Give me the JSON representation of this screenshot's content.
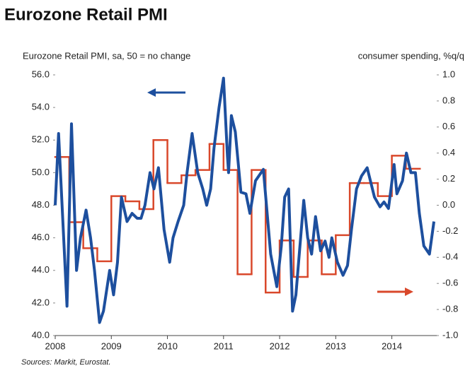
{
  "chart_data": {
    "type": "line",
    "title": "Eurozone Retail PMI",
    "y_label": "Eurozone Retail PMI, sa, 50 = no change",
    "y2_label": "consumer spending, %q/q",
    "source": "Sources: Markit, Eurostat.",
    "xlim": [
      2008,
      2014.8
    ],
    "xticks": [
      2008,
      2009,
      2010,
      2011,
      2012,
      2013,
      2014
    ],
    "ylim": [
      40,
      56
    ],
    "yticks": [
      {
        "value": 40,
        "label": "40.0"
      },
      {
        "value": 42,
        "label": "42.0"
      },
      {
        "value": 44,
        "label": "44.0"
      },
      {
        "value": 46,
        "label": "46.0"
      },
      {
        "value": 48,
        "label": "48.0"
      },
      {
        "value": 50,
        "label": "50.0"
      },
      {
        "value": 52,
        "label": "52.0"
      },
      {
        "value": 54,
        "label": "54.0"
      },
      {
        "value": 56,
        "label": "56.0"
      }
    ],
    "y2lim": [
      -1,
      1
    ],
    "y2ticks": [
      {
        "value": -1,
        "label": "-1.0"
      },
      {
        "value": -0.8,
        "label": "-0.8"
      },
      {
        "value": -0.6,
        "label": "-0.6"
      },
      {
        "value": -0.4,
        "label": "-0.4"
      },
      {
        "value": -0.2,
        "label": "-0.2"
      },
      {
        "value": 0,
        "label": "0.0"
      },
      {
        "value": 0.2,
        "label": "0.2"
      },
      {
        "value": 0.4,
        "label": "0.4"
      },
      {
        "value": 0.6,
        "label": "0.6"
      },
      {
        "value": 0.8,
        "label": "0.8"
      },
      {
        "value": 1,
        "label": "1.0"
      }
    ],
    "grid": false,
    "series": [
      {
        "color": "#1d4f9e",
        "x": [
          2008.0,
          2008.06,
          2008.21,
          2008.29,
          2008.38,
          2008.45,
          2008.55,
          2008.63,
          2008.7,
          2008.79,
          2008.86,
          2008.97,
          2009.04,
          2009.11,
          2009.18,
          2009.28,
          2009.37,
          2009.46,
          2009.53,
          2009.6,
          2009.69,
          2009.76,
          2009.84,
          2009.94,
          2010.04,
          2010.1,
          2010.19,
          2010.29,
          2010.35,
          2010.44,
          2010.54,
          2010.63,
          2010.7,
          2010.77,
          2010.83,
          2010.92,
          2011.0,
          2011.07,
          2011.09,
          2011.14,
          2011.21,
          2011.31,
          2011.4,
          2011.47,
          2011.57,
          2011.71,
          2011.84,
          2011.95,
          2012.03,
          2012.09,
          2012.16,
          2012.23,
          2012.29,
          2012.35,
          2012.43,
          2012.5,
          2012.57,
          2012.64,
          2012.73,
          2012.81,
          2012.88,
          2012.93,
          2013.03,
          2013.13,
          2013.21,
          2013.28,
          2013.37,
          2013.46,
          2013.56,
          2013.69,
          2013.79,
          2013.86,
          2013.94,
          2014.04,
          2014.09,
          2014.19,
          2014.26,
          2014.34,
          2014.42,
          2014.49,
          2014.57,
          2014.67,
          2014.75
        ],
        "values": [
          48.0,
          52.4,
          41.8,
          53.0,
          44.0,
          46.0,
          47.7,
          46.0,
          44.0,
          40.8,
          41.5,
          44.0,
          42.5,
          44.5,
          48.5,
          47.0,
          47.5,
          47.2,
          47.2,
          48.0,
          50.0,
          49.0,
          50.3,
          46.5,
          44.5,
          46.0,
          47.0,
          48.0,
          50.0,
          52.4,
          50.0,
          49.0,
          48.0,
          49.0,
          51.5,
          54.0,
          55.8,
          51.0,
          50.0,
          53.5,
          52.5,
          48.8,
          48.7,
          47.5,
          49.5,
          50.2,
          45.0,
          43.0,
          45.5,
          48.5,
          49.0,
          41.5,
          42.5,
          45.0,
          48.3,
          46.0,
          45.0,
          47.3,
          45.2,
          45.8,
          44.8,
          46.0,
          44.5,
          43.7,
          44.3,
          46.5,
          49.0,
          49.8,
          50.3,
          48.5,
          47.9,
          48.2,
          47.8,
          50.5,
          48.7,
          49.5,
          51.2,
          50.0,
          50.0,
          47.5,
          45.5,
          45.0,
          47.0
        ]
      },
      {
        "color": "#d9482b",
        "axis": "y2",
        "step": "post",
        "x": [
          2008.0,
          2008.25,
          2008.5,
          2008.75,
          2009.0,
          2009.25,
          2009.5,
          2009.75,
          2010.0,
          2010.25,
          2010.5,
          2010.75,
          2011.0,
          2011.25,
          2011.5,
          2011.75,
          2012.0,
          2012.25,
          2012.5,
          2012.75,
          2013.0,
          2013.25,
          2013.5,
          2013.75,
          2014.0,
          2014.25
        ],
        "values": [
          0.37,
          -0.13,
          -0.33,
          -0.43,
          0.07,
          0.03,
          -0.03,
          0.5,
          0.17,
          0.23,
          0.27,
          0.47,
          0.27,
          -0.53,
          0.27,
          -0.67,
          -0.27,
          -0.55,
          -0.27,
          -0.53,
          -0.23,
          0.17,
          0.17,
          0.07,
          0.38,
          0.28
        ]
      }
    ]
  }
}
